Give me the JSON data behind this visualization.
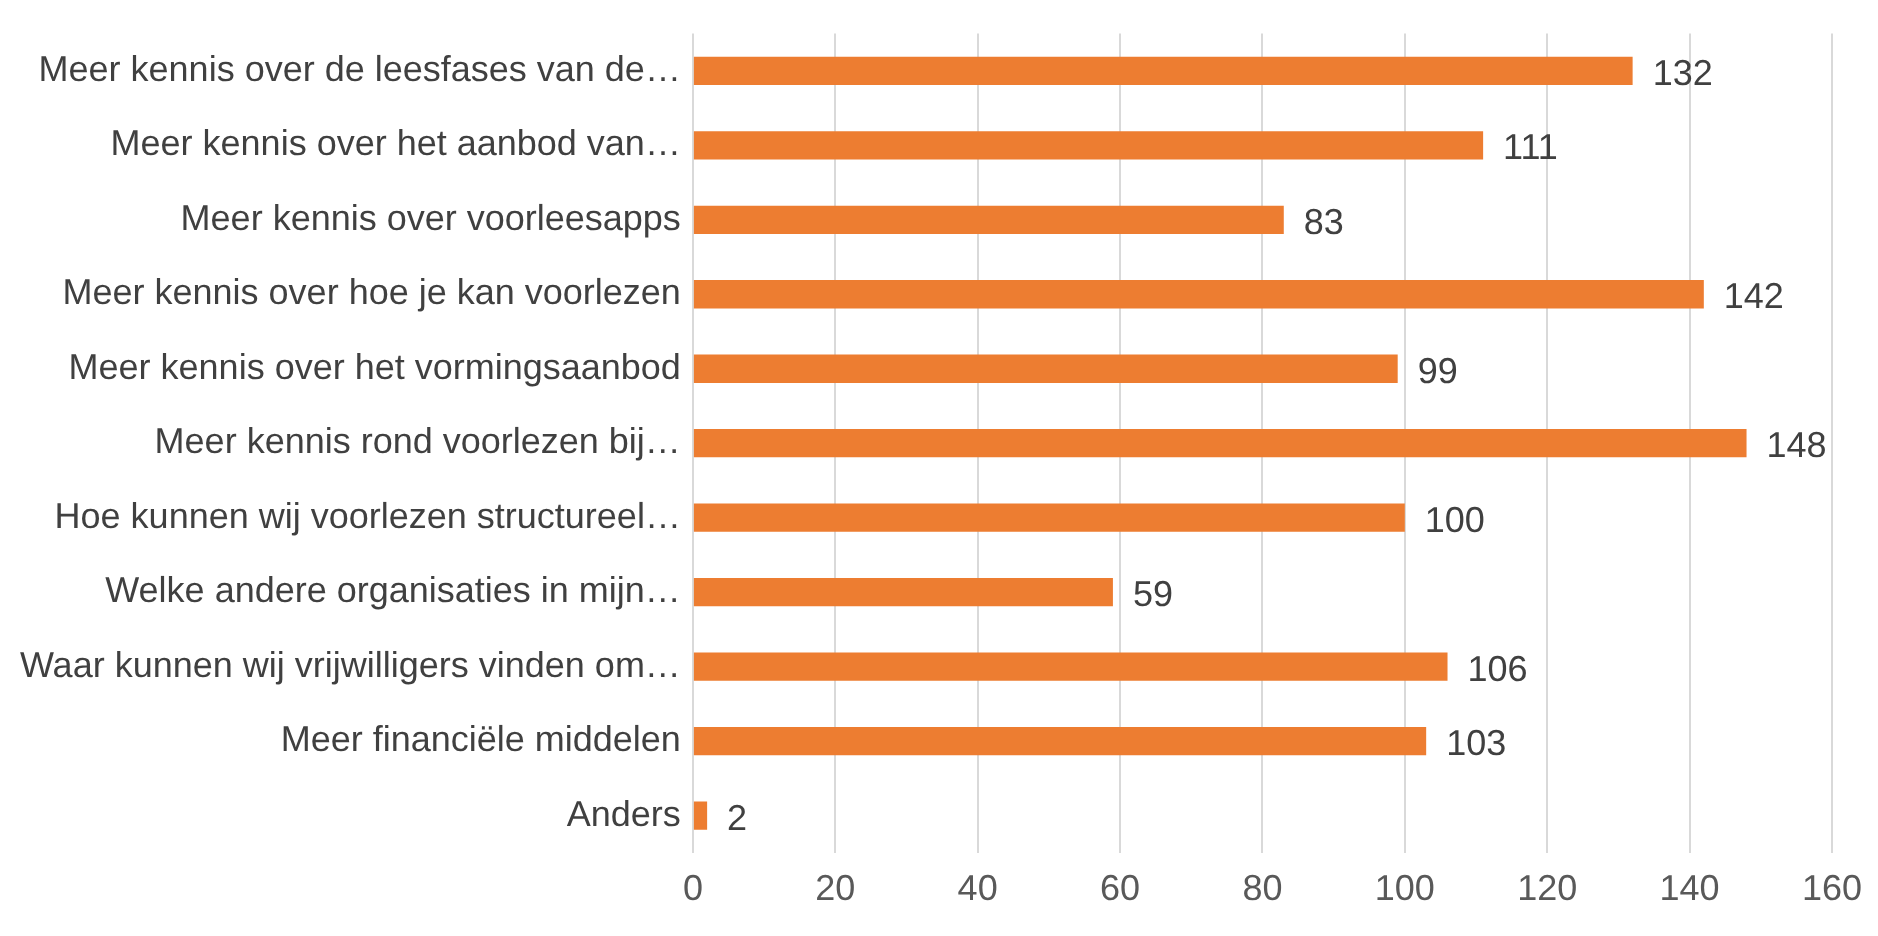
{
  "chart_data": {
    "type": "bar",
    "orientation": "horizontal",
    "categories": [
      "Meer kennis over de leesfases van de…",
      "Meer kennis over het aanbod van…",
      "Meer kennis over voorleesapps",
      "Meer kennis over hoe je kan voorlezen",
      "Meer kennis over het vormingsaanbod",
      "Meer kennis rond voorlezen bij…",
      "Hoe kunnen wij voorlezen structureel…",
      "Welke andere organisaties in mijn…",
      "Waar kunnen wij vrijwilligers vinden om…",
      "Meer financiële middelen",
      "Anders"
    ],
    "values": [
      132,
      111,
      83,
      142,
      99,
      148,
      100,
      59,
      106,
      103,
      2
    ],
    "color": "#ed7d31",
    "xlim": [
      0,
      160
    ],
    "xticks": [
      0,
      20,
      40,
      60,
      80,
      100,
      120,
      140,
      160
    ],
    "grid": "x",
    "data_labels": true,
    "legend": false
  }
}
